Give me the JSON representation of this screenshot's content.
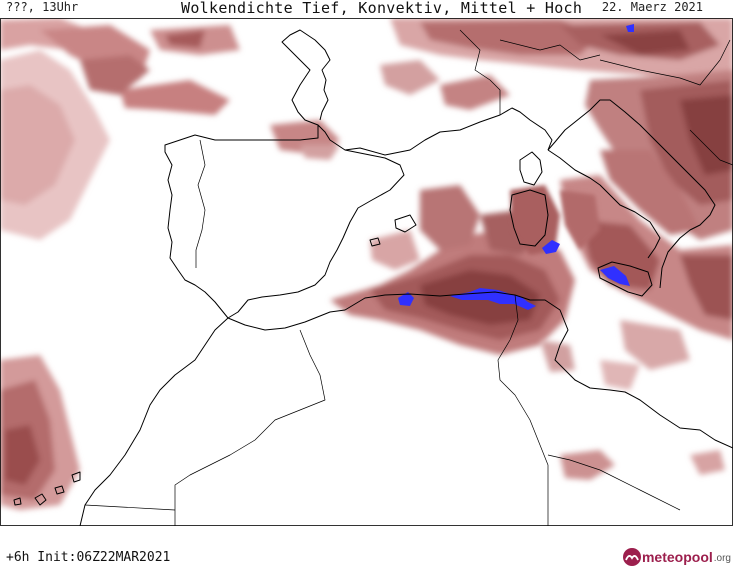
{
  "header": {
    "left": "???, 13Uhr",
    "center": "Wolkendichte  Tief, Konvektiv, Mittel + Hoch",
    "right": "22. Maerz 2021"
  },
  "footer": {
    "left": "+6h  Init:06Z22MAR2021",
    "logo_main": "meteopool",
    "logo_suffix": ".org"
  },
  "colors": {
    "cloud_light": "#e2b5b5",
    "cloud_mid": "#c98686",
    "cloud_dark": "#a05656",
    "cloud_darkest": "#7d3a3a",
    "convective": "#3030ff",
    "coastline": "#000000",
    "brand": "#9c1f4d"
  },
  "icons": {
    "logo": "meteopool-logo-icon"
  }
}
